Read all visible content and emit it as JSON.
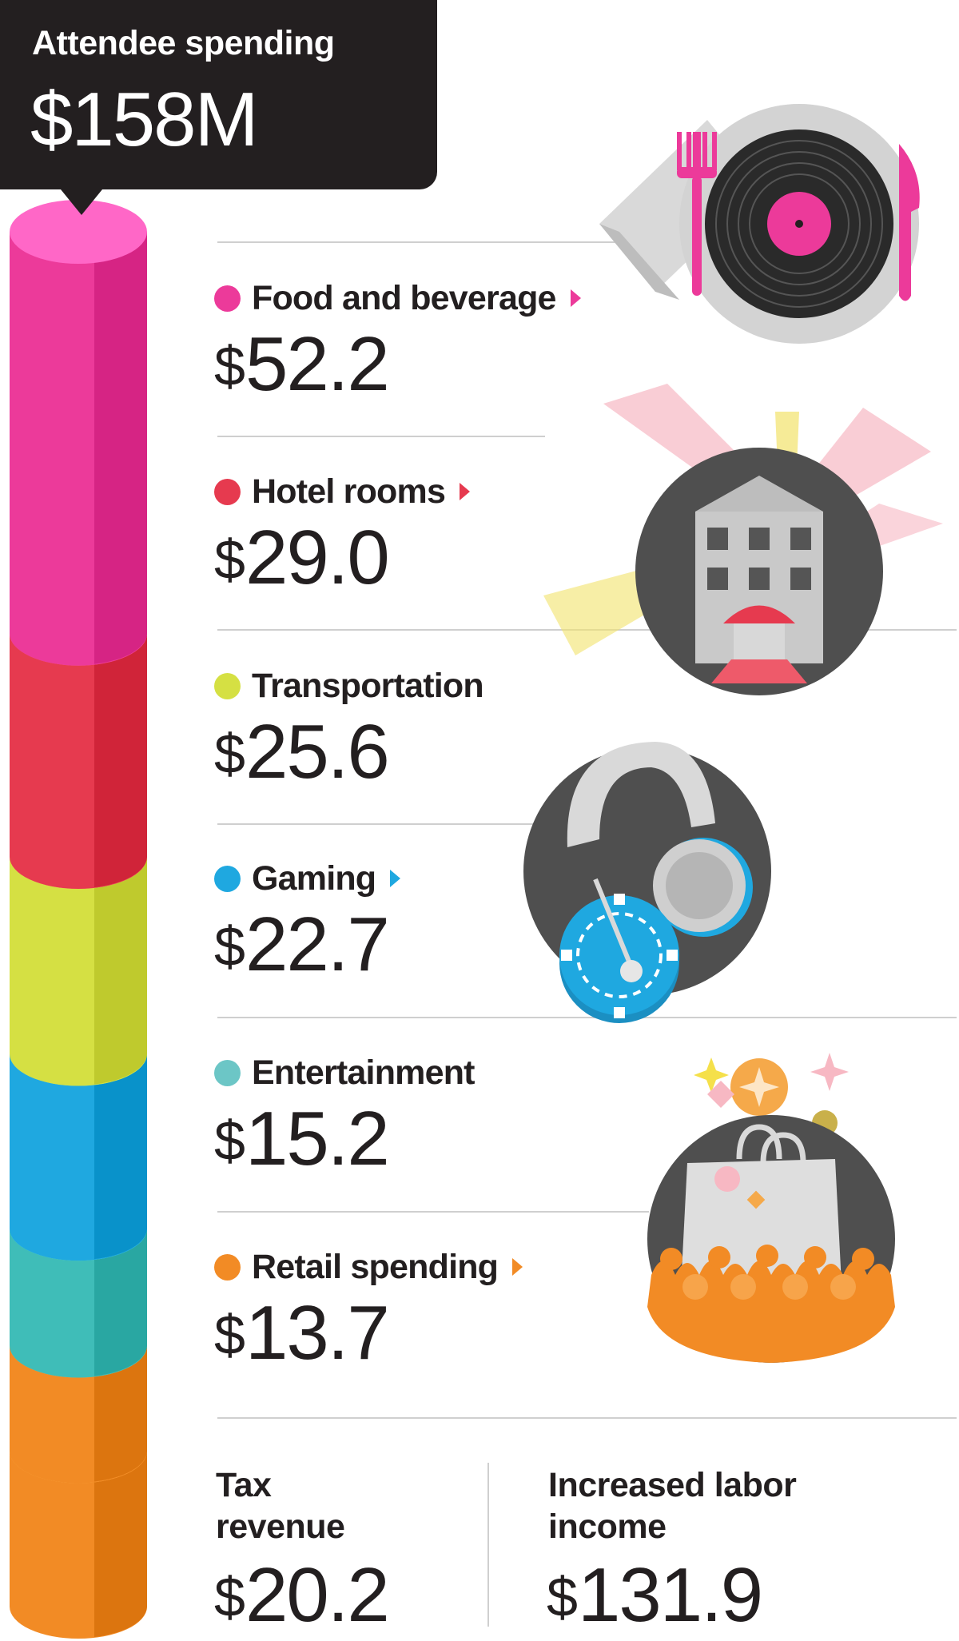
{
  "header": {
    "title": "Attendee spending",
    "total": "$158M"
  },
  "currency_symbol": "$",
  "categories": [
    {
      "label": "Food and beverage",
      "value": "52.2",
      "color": "#ec3a9a",
      "arrow": true,
      "icon": "vinyl-dinner-plate-icon"
    },
    {
      "label": "Hotel rooms",
      "value": "29.0",
      "color": "#e63a4f",
      "arrow": true,
      "icon": "hotel-spotlights-icon"
    },
    {
      "label": "Transportation",
      "value": "25.6",
      "color": "#d5e043",
      "arrow": false,
      "icon": ""
    },
    {
      "label": "Gaming",
      "value": "22.7",
      "color": "#1fa8e0",
      "arrow": true,
      "icon": "headphones-poker-chip-icon"
    },
    {
      "label": "Entertainment",
      "value": "15.2",
      "color": "#6cc6c6",
      "arrow": false,
      "icon": ""
    },
    {
      "label": "Retail spending",
      "value": "13.7",
      "color": "#f28b25",
      "arrow": true,
      "icon": "shopping-bag-crowd-icon"
    }
  ],
  "bottom": {
    "tax": {
      "label_line1": "Tax",
      "label_line2": "revenue",
      "value": "20.2"
    },
    "labor": {
      "label_line1": "Increased labor",
      "label_line2": "income",
      "value": "131.9"
    }
  },
  "chart_data": {
    "type": "bar",
    "title": "Attendee spending",
    "total": 158,
    "unit": "$M",
    "categories": [
      "Food and beverage",
      "Hotel rooms",
      "Transportation",
      "Gaming",
      "Entertainment",
      "Retail spending",
      "Tax revenue"
    ],
    "values": [
      52.2,
      29.0,
      25.6,
      22.7,
      15.2,
      13.7,
      20.2
    ],
    "colors": [
      "#ec3a9a",
      "#e63a4f",
      "#d5e043",
      "#1fa8e0",
      "#3fbdb8",
      "#f28b25",
      "#f28b25"
    ],
    "other_values": [
      {
        "label": "Increased labor income",
        "value": 131.9
      }
    ]
  }
}
